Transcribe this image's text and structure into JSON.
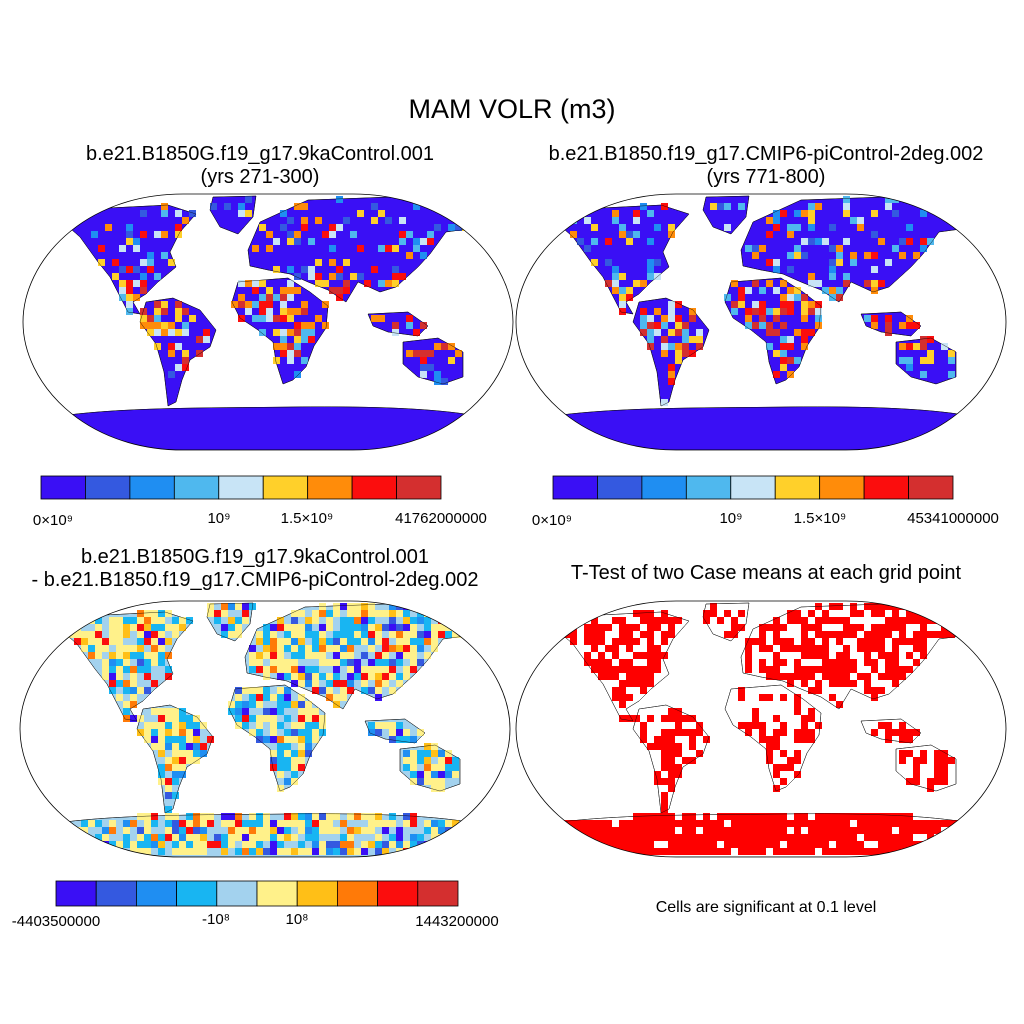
{
  "title": "MAM VOLR (m3)",
  "colors": {
    "seq": [
      "#3a0ff5",
      "#3459e0",
      "#1f8ef2",
      "#4fb8ee",
      "#c8e4f6",
      "#ffd02a",
      "#ff8c0a",
      "#fb0d0d",
      "#d42f2f"
    ],
    "div": [
      "#3a0ff5",
      "#3459e0",
      "#1f8ef2",
      "#18b5f2",
      "#a3d2ee",
      "#fff18a",
      "#ffbf17",
      "#ff7a08",
      "#fb0d0d",
      "#d42f2f"
    ],
    "sig": "#fe0000"
  },
  "panels": [
    {
      "id": "p1",
      "title_line1": "b.e21.B1850G.f19_g17.9kaControl.001",
      "title_line2": "(yrs 271-300)",
      "colorbar": {
        "ticks": [
          "0×10⁹",
          "10⁹",
          "1.5×10⁹",
          "41762000000"
        ]
      }
    },
    {
      "id": "p2",
      "title_line1": "b.e21.B1850.f19_g17.CMIP6-piControl-2deg.002",
      "title_line2": "(yrs 771-800)",
      "colorbar": {
        "ticks": [
          "0×10⁹",
          "10⁹",
          "1.5×10⁹",
          "45341000000"
        ]
      }
    },
    {
      "id": "p3",
      "title_line1": "b.e21.B1850G.f19_g17.9kaControl.001",
      "title_line2": "- b.e21.B1850.f19_g17.CMIP6-piControl-2deg.002",
      "colorbar": {
        "ticks": [
          "-4403500000",
          "-10⁸",
          "10⁸",
          "1443200000"
        ]
      }
    },
    {
      "id": "p4",
      "title_line1": "T-Test of two Case means at each grid point",
      "note": "Cells are significant at 0.1 level"
    }
  ]
}
